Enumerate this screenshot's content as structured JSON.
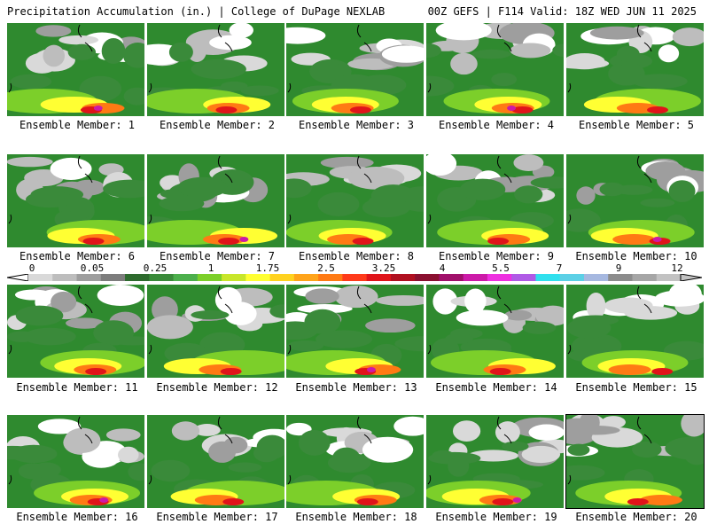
{
  "header": {
    "left": "Precipitation Accumulation (in.) | College of DuPage NEXLAB",
    "right": "00Z GEFS | F114 Valid: 18Z WED JUN 11 2025"
  },
  "panels": [
    {
      "label": "Ensemble Member: 1"
    },
    {
      "label": "Ensemble Member: 2"
    },
    {
      "label": "Ensemble Member: 3"
    },
    {
      "label": "Ensemble Member: 4"
    },
    {
      "label": "Ensemble Member: 5"
    },
    {
      "label": "Ensemble Member: 6"
    },
    {
      "label": "Ensemble Member: 7"
    },
    {
      "label": "Ensemble Member: 8"
    },
    {
      "label": "Ensemble Member: 9"
    },
    {
      "label": "Ensemble Member: 10"
    },
    {
      "label": "Ensemble Member: 11"
    },
    {
      "label": "Ensemble Member: 12"
    },
    {
      "label": "Ensemble Member: 13"
    },
    {
      "label": "Ensemble Member: 14"
    },
    {
      "label": "Ensemble Member: 15"
    },
    {
      "label": "Ensemble Member: 16"
    },
    {
      "label": "Ensemble Member: 17"
    },
    {
      "label": "Ensemble Member: 18"
    },
    {
      "label": "Ensemble Member: 19"
    },
    {
      "label": "Ensemble Member: 20"
    }
  ],
  "colorbar": {
    "tick_labels": [
      "0",
      "0.05",
      "0.25",
      "1",
      "1.75",
      "2.5",
      "3.25",
      "4",
      "5.5",
      "7",
      "9",
      "12"
    ],
    "colors": [
      "#d9d9d9",
      "#bdbdbd",
      "#9e9e9e",
      "#7d7d7d",
      "#2e6b2e",
      "#3a8a3a",
      "#4caf4c",
      "#7ccf2a",
      "#c8e62a",
      "#ffff33",
      "#ffd21f",
      "#ffa41a",
      "#ff7a14",
      "#ff3a1a",
      "#e0141a",
      "#b01020",
      "#8a1030",
      "#a0106a",
      "#cc1aa8",
      "#ee30e0",
      "#b05ae6",
      "#30e0ee",
      "#5cd0e6",
      "#a6b8e0",
      "#8c8c8c",
      "#a6a6a6",
      "#c2c2c2"
    ]
  }
}
